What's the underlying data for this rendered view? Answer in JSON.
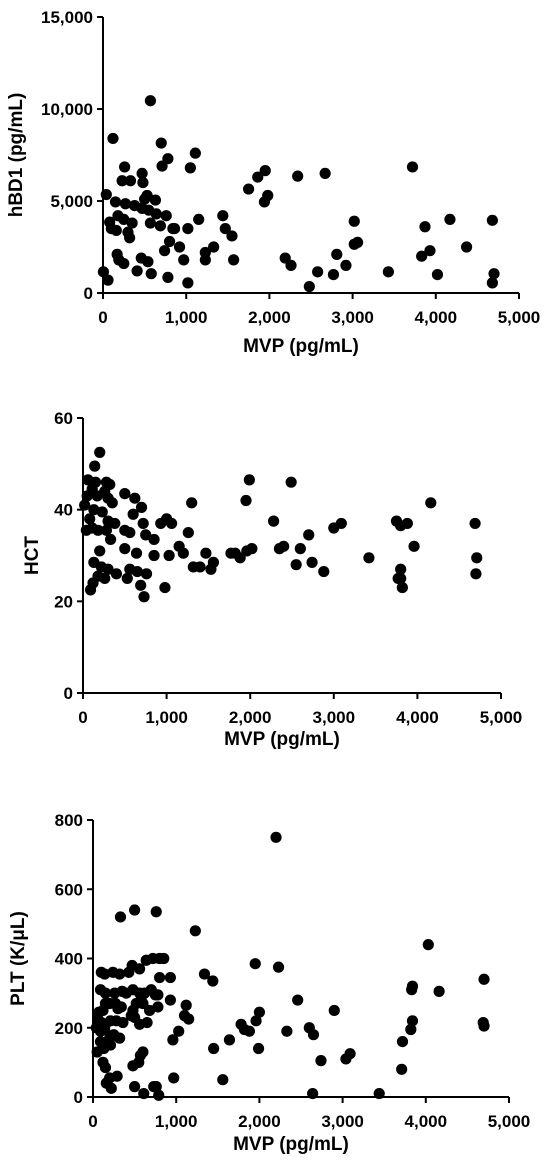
{
  "chart_data": [
    {
      "type": "scatter",
      "xlabel": "MVP (pg/mL)",
      "ylabel": "hBD1 (pg/mL)",
      "xlim": [
        0,
        5000
      ],
      "ylim": [
        0,
        15000
      ],
      "x_ticks": [
        0,
        1000,
        2000,
        3000,
        4000,
        5000
      ],
      "x_tick_labels": [
        "0",
        "1,000",
        "2,000",
        "3,000",
        "4,000",
        "5,000"
      ],
      "y_ticks": [
        0,
        5000,
        10000,
        15000
      ],
      "y_tick_labels": [
        "0",
        "5,000",
        "10,000",
        "15,000"
      ],
      "grid": false,
      "marker_color": "#000000",
      "points": [
        [
          570,
          10450
        ],
        [
          120,
          8400
        ],
        [
          700,
          8150
        ],
        [
          780,
          7300
        ],
        [
          1110,
          7600
        ],
        [
          710,
          6900
        ],
        [
          1050,
          6800
        ],
        [
          260,
          6850
        ],
        [
          230,
          6100
        ],
        [
          330,
          6100
        ],
        [
          470,
          6500
        ],
        [
          480,
          6000
        ],
        [
          530,
          5300
        ],
        [
          500,
          5100
        ],
        [
          630,
          5050
        ],
        [
          1950,
          6650
        ],
        [
          1860,
          6300
        ],
        [
          1750,
          5650
        ],
        [
          1980,
          5300
        ],
        [
          1940,
          4950
        ],
        [
          2340,
          6350
        ],
        [
          2670,
          6500
        ],
        [
          3720,
          6850
        ],
        [
          40,
          5350
        ],
        [
          150,
          4950
        ],
        [
          270,
          4850
        ],
        [
          380,
          4750
        ],
        [
          470,
          4600
        ],
        [
          550,
          4500
        ],
        [
          640,
          4300
        ],
        [
          760,
          4200
        ],
        [
          840,
          3500
        ],
        [
          180,
          4200
        ],
        [
          250,
          4000
        ],
        [
          80,
          3850
        ],
        [
          350,
          3800
        ],
        [
          570,
          3800
        ],
        [
          690,
          3650
        ],
        [
          860,
          3500
        ],
        [
          100,
          3500
        ],
        [
          160,
          3400
        ],
        [
          300,
          3300
        ],
        [
          320,
          3000
        ],
        [
          1150,
          4000
        ],
        [
          1440,
          4200
        ],
        [
          1470,
          3500
        ],
        [
          1550,
          3100
        ],
        [
          1020,
          3500
        ],
        [
          3020,
          3900
        ],
        [
          3870,
          3600
        ],
        [
          4170,
          4000
        ],
        [
          4680,
          3950
        ],
        [
          3060,
          2750
        ],
        [
          3020,
          2650
        ],
        [
          4370,
          2500
        ],
        [
          3930,
          2300
        ],
        [
          3830,
          2000
        ],
        [
          170,
          2100
        ],
        [
          190,
          1800
        ],
        [
          250,
          1600
        ],
        [
          460,
          1900
        ],
        [
          540,
          1700
        ],
        [
          740,
          2300
        ],
        [
          800,
          2800
        ],
        [
          920,
          2500
        ],
        [
          970,
          1800
        ],
        [
          1330,
          2500
        ],
        [
          1230,
          2200
        ],
        [
          1230,
          1800
        ],
        [
          1570,
          1800
        ],
        [
          2190,
          1900
        ],
        [
          2260,
          1500
        ],
        [
          2810,
          2100
        ],
        [
          2920,
          1500
        ],
        [
          2580,
          1150
        ],
        [
          2770,
          1000
        ],
        [
          3430,
          1150
        ],
        [
          4020,
          1000
        ],
        [
          4700,
          1050
        ],
        [
          4680,
          550
        ],
        [
          5,
          1150
        ],
        [
          60,
          700
        ],
        [
          410,
          1200
        ],
        [
          580,
          1050
        ],
        [
          780,
          850
        ],
        [
          1020,
          550
        ],
        [
          2480,
          350
        ]
      ]
    },
    {
      "type": "scatter",
      "xlabel": "MVP (pg/mL)",
      "ylabel": "HCT",
      "xlim": [
        0,
        5000
      ],
      "ylim": [
        0,
        60
      ],
      "x_ticks": [
        0,
        1000,
        2000,
        3000,
        4000,
        5000
      ],
      "x_tick_labels": [
        "0",
        "1,000",
        "2,000",
        "3,000",
        "4,000",
        "5,000"
      ],
      "y_ticks": [
        0,
        20,
        40,
        60
      ],
      "y_tick_labels": [
        "0",
        "20",
        "40",
        "60"
      ],
      "grid": false,
      "marker_color": "#000000",
      "points": [
        [
          200,
          52.5
        ],
        [
          140,
          49.5
        ],
        [
          60,
          46.5
        ],
        [
          150,
          46
        ],
        [
          280,
          46
        ],
        [
          320,
          45.5
        ],
        [
          110,
          44.5
        ],
        [
          260,
          44
        ],
        [
          500,
          43.5
        ],
        [
          50,
          43
        ],
        [
          170,
          43
        ],
        [
          300,
          42.5
        ],
        [
          620,
          42.5
        ],
        [
          20,
          41
        ],
        [
          350,
          41.5
        ],
        [
          700,
          40.5
        ],
        [
          130,
          40
        ],
        [
          230,
          39.5
        ],
        [
          600,
          39
        ],
        [
          80,
          38
        ],
        [
          300,
          37.5
        ],
        [
          380,
          37
        ],
        [
          720,
          37
        ],
        [
          930,
          37
        ],
        [
          1060,
          37
        ],
        [
          1000,
          38
        ],
        [
          40,
          35.5
        ],
        [
          110,
          36
        ],
        [
          180,
          35.5
        ],
        [
          280,
          35.5
        ],
        [
          500,
          35.5
        ],
        [
          560,
          35
        ],
        [
          750,
          34.5
        ],
        [
          850,
          33.5
        ],
        [
          1260,
          35
        ],
        [
          1300,
          41.5
        ],
        [
          1950,
          42
        ],
        [
          1990,
          46.5
        ],
        [
          2490,
          46
        ],
        [
          4160,
          41.5
        ],
        [
          3750,
          37.5
        ],
        [
          3880,
          37
        ],
        [
          3800,
          36.5
        ],
        [
          3960,
          32
        ],
        [
          3420,
          29.5
        ],
        [
          3090,
          37
        ],
        [
          3000,
          36
        ],
        [
          2600,
          31.5
        ],
        [
          2550,
          28
        ],
        [
          2700,
          34.5
        ],
        [
          2740,
          28.5
        ],
        [
          2880,
          26.5
        ],
        [
          2280,
          37.5
        ],
        [
          2350,
          31.5
        ],
        [
          2400,
          32
        ],
        [
          2020,
          31.5
        ],
        [
          1960,
          31
        ],
        [
          1820,
          30.5
        ],
        [
          1770,
          30.5
        ],
        [
          1880,
          29.5
        ],
        [
          4690,
          37
        ],
        [
          4710,
          29.5
        ],
        [
          4700,
          26
        ],
        [
          3800,
          25
        ],
        [
          3800,
          27
        ],
        [
          3770,
          25
        ],
        [
          3820,
          23
        ],
        [
          200,
          31
        ],
        [
          330,
          33.5
        ],
        [
          500,
          31.5
        ],
        [
          640,
          30.5
        ],
        [
          850,
          30
        ],
        [
          1030,
          30
        ],
        [
          1150,
          32
        ],
        [
          1200,
          30.5
        ],
        [
          1560,
          28.5
        ],
        [
          1470,
          30.5
        ],
        [
          1400,
          27.5
        ],
        [
          1320,
          27.5
        ],
        [
          1530,
          27
        ],
        [
          130,
          28.5
        ],
        [
          220,
          27.5
        ],
        [
          300,
          27
        ],
        [
          400,
          26
        ],
        [
          560,
          27
        ],
        [
          650,
          26.5
        ],
        [
          760,
          26
        ],
        [
          180,
          25.5
        ],
        [
          260,
          25
        ],
        [
          120,
          24
        ],
        [
          530,
          25
        ],
        [
          690,
          23.5
        ],
        [
          730,
          21
        ],
        [
          980,
          23
        ],
        [
          90,
          22.5
        ]
      ]
    },
    {
      "type": "scatter",
      "xlabel": "MVP (pg/mL)",
      "ylabel": "PLT (K/μL)",
      "xlim": [
        0,
        5000
      ],
      "ylim": [
        0,
        800
      ],
      "x_ticks": [
        0,
        1000,
        2000,
        3000,
        4000,
        5000
      ],
      "x_tick_labels": [
        "0",
        "1,000",
        "2,000",
        "3,000",
        "4,000",
        "5,000"
      ],
      "y_ticks": [
        0,
        200,
        400,
        600,
        800
      ],
      "y_tick_labels": [
        "0",
        "200",
        "400",
        "600",
        "800"
      ],
      "grid": false,
      "marker_color": "#000000",
      "points": [
        [
          2200,
          750
        ],
        [
          500,
          540
        ],
        [
          330,
          520
        ],
        [
          760,
          535
        ],
        [
          1230,
          480
        ],
        [
          4030,
          440
        ],
        [
          1950,
          385
        ],
        [
          2230,
          375
        ],
        [
          1340,
          355
        ],
        [
          1440,
          335
        ],
        [
          4700,
          340
        ],
        [
          4160,
          305
        ],
        [
          3840,
          320
        ],
        [
          3830,
          310
        ],
        [
          3840,
          220
        ],
        [
          3820,
          195
        ],
        [
          4690,
          215
        ],
        [
          4700,
          205
        ],
        [
          3720,
          160
        ],
        [
          3710,
          80
        ],
        [
          3440,
          10
        ],
        [
          2640,
          10
        ],
        [
          2650,
          180
        ],
        [
          2460,
          280
        ],
        [
          2600,
          200
        ],
        [
          2900,
          250
        ],
        [
          3040,
          110
        ],
        [
          3090,
          125
        ],
        [
          2740,
          105
        ],
        [
          2330,
          190
        ],
        [
          1990,
          140
        ],
        [
          1820,
          195
        ],
        [
          1880,
          190
        ],
        [
          1780,
          210
        ],
        [
          1960,
          220
        ],
        [
          2000,
          245
        ],
        [
          1640,
          165
        ],
        [
          1560,
          50
        ],
        [
          1450,
          140
        ],
        [
          1100,
          235
        ],
        [
          1120,
          265
        ],
        [
          1150,
          225
        ],
        [
          1030,
          190
        ],
        [
          960,
          165
        ],
        [
          970,
          55
        ],
        [
          800,
          400
        ],
        [
          850,
          400
        ],
        [
          720,
          400
        ],
        [
          640,
          395
        ],
        [
          560,
          370
        ],
        [
          470,
          380
        ],
        [
          430,
          360
        ],
        [
          320,
          355
        ],
        [
          240,
          360
        ],
        [
          100,
          360
        ],
        [
          140,
          355
        ],
        [
          90,
          310
        ],
        [
          150,
          300
        ],
        [
          260,
          300
        ],
        [
          350,
          305
        ],
        [
          400,
          300
        ],
        [
          480,
          310
        ],
        [
          560,
          300
        ],
        [
          620,
          300
        ],
        [
          700,
          310
        ],
        [
          750,
          295
        ],
        [
          780,
          295
        ],
        [
          800,
          345
        ],
        [
          930,
          345
        ],
        [
          930,
          280
        ],
        [
          780,
          260
        ],
        [
          680,
          250
        ],
        [
          580,
          280
        ],
        [
          600,
          270
        ],
        [
          520,
          270
        ],
        [
          480,
          250
        ],
        [
          460,
          235
        ],
        [
          340,
          260
        ],
        [
          300,
          255
        ],
        [
          270,
          270
        ],
        [
          200,
          270
        ],
        [
          150,
          270
        ],
        [
          120,
          250
        ],
        [
          70,
          245
        ],
        [
          60,
          225
        ],
        [
          100,
          215
        ],
        [
          150,
          210
        ],
        [
          210,
          220
        ],
        [
          280,
          220
        ],
        [
          360,
          215
        ],
        [
          500,
          230
        ],
        [
          560,
          210
        ],
        [
          650,
          215
        ],
        [
          40,
          200
        ],
        [
          90,
          190
        ],
        [
          140,
          195
        ],
        [
          200,
          170
        ],
        [
          250,
          180
        ],
        [
          320,
          170
        ],
        [
          90,
          160
        ],
        [
          130,
          140
        ],
        [
          50,
          130
        ],
        [
          210,
          150
        ],
        [
          120,
          100
        ],
        [
          150,
          85
        ],
        [
          200,
          55
        ],
        [
          160,
          40
        ],
        [
          290,
          60
        ],
        [
          220,
          25
        ],
        [
          480,
          90
        ],
        [
          550,
          100
        ],
        [
          570,
          120
        ],
        [
          600,
          130
        ],
        [
          500,
          30
        ],
        [
          730,
          30
        ],
        [
          760,
          30
        ],
        [
          610,
          10
        ],
        [
          790,
          5
        ]
      ]
    }
  ]
}
